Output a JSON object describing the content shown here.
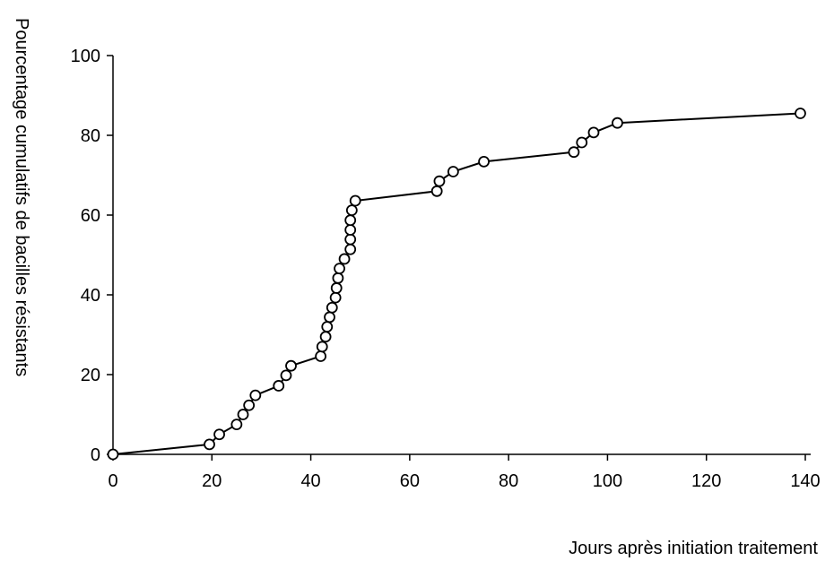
{
  "chart_data": {
    "type": "line",
    "title": "",
    "xlabel": "Jours après initiation traitement",
    "ylabel": "Pourcentage cumulatifs de bacilles résistants",
    "xlim": [
      0,
      140
    ],
    "ylim": [
      0,
      100
    ],
    "x_ticks": [
      "0",
      "20",
      "40",
      "60",
      "80",
      "100",
      "120",
      "140"
    ],
    "y_ticks": [
      "0",
      "20",
      "40",
      "60",
      "80",
      "100"
    ],
    "grid": false,
    "legend": "none",
    "series": [
      {
        "marker": "open-circle",
        "color": "#000000",
        "points": [
          [
            0,
            0
          ],
          [
            19.5,
            2.5
          ],
          [
            21.5,
            5
          ],
          [
            25,
            7.5
          ],
          [
            26.3,
            10
          ],
          [
            27.5,
            12.3
          ],
          [
            28.8,
            14.8
          ],
          [
            33.5,
            17.2
          ],
          [
            35,
            19.8
          ],
          [
            36,
            22.2
          ],
          [
            42,
            24.6
          ],
          [
            42.3,
            27
          ],
          [
            43,
            29.5
          ],
          [
            43.3,
            32
          ],
          [
            43.8,
            34.4
          ],
          [
            44.3,
            36.8
          ],
          [
            45,
            39.3
          ],
          [
            45.2,
            41.7
          ],
          [
            45.5,
            44.2
          ],
          [
            45.8,
            46.6
          ],
          [
            46.8,
            49
          ],
          [
            48,
            51.4
          ],
          [
            48,
            53.9
          ],
          [
            48,
            56.3
          ],
          [
            48,
            58.7
          ],
          [
            48.3,
            61.2
          ],
          [
            49,
            63.6
          ],
          [
            65.5,
            66
          ],
          [
            66,
            68.5
          ],
          [
            68.8,
            70.9
          ],
          [
            75,
            73.4
          ],
          [
            93.2,
            75.8
          ],
          [
            94.8,
            78.2
          ],
          [
            97.2,
            80.7
          ],
          [
            102,
            83.1
          ],
          [
            139,
            85.5
          ]
        ]
      }
    ]
  }
}
